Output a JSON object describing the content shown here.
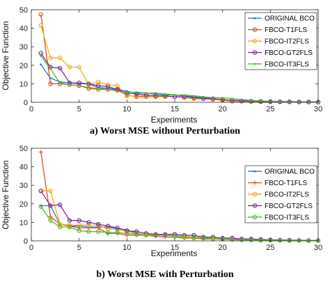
{
  "chart_data": [
    {
      "type": "line",
      "caption": "a) Worst MSE without Perturbation",
      "xlabel": "Experiments",
      "ylabel": "Objective Function",
      "xlim": [
        0,
        30
      ],
      "ylim": [
        0,
        50
      ],
      "xticks": [
        0,
        5,
        10,
        15,
        20,
        25,
        30
      ],
      "yticks": [
        0,
        10,
        20,
        30,
        40,
        50
      ],
      "grid": false,
      "legend_position": "top-right",
      "x": [
        1,
        2,
        3,
        4,
        5,
        6,
        7,
        8,
        9,
        10,
        11,
        12,
        13,
        14,
        15,
        16,
        17,
        18,
        19,
        20,
        21,
        22,
        23,
        24,
        25,
        26,
        27,
        28,
        29,
        30
      ],
      "series": [
        {
          "name": "ORIGINAL BCO",
          "color": "#1f77d4",
          "marker": "point",
          "values": [
            20.5,
            13,
            11,
            10.5,
            10,
            10,
            8,
            7.5,
            7,
            6,
            5,
            5,
            4.5,
            4,
            4,
            3.5,
            3,
            2.5,
            2,
            1.5,
            1,
            1,
            0.8,
            0.7,
            0.6,
            0.5,
            0.4,
            0.3,
            0.3,
            0.2
          ]
        },
        {
          "name": "FBCO-T1FLS",
          "color": "#d9541e",
          "marker": "circle",
          "values": [
            47.5,
            10,
            10,
            9.5,
            9,
            7.5,
            7,
            7,
            6.5,
            4,
            3,
            3,
            3,
            3,
            3,
            2.5,
            2,
            2,
            1.5,
            1,
            0.5,
            0.5,
            0.4,
            0.3,
            0.3,
            0.3,
            0.2,
            0.2,
            0.1,
            0.1
          ]
        },
        {
          "name": "FBCO-IT2FLS",
          "color": "#eeb120",
          "marker": "circle",
          "values": [
            41.5,
            24,
            24,
            19,
            19,
            9.5,
            11,
            9.5,
            9,
            3.5,
            3.5,
            3.5,
            3,
            3,
            3,
            2.5,
            2,
            2,
            1.5,
            1,
            0.5,
            0.5,
            0.4,
            0.3,
            0.3,
            0.3,
            0.2,
            0.2,
            0.1,
            0.1
          ]
        },
        {
          "name": "FBCO-GT2FLS",
          "color": "#7e2f8e",
          "marker": "circle",
          "values": [
            26.5,
            19,
            18.5,
            10.5,
            10.5,
            10,
            9,
            8.5,
            7,
            5,
            4.5,
            4,
            3.5,
            3.5,
            3,
            3,
            2.5,
            2,
            2,
            1.5,
            1,
            0.8,
            0.6,
            0.5,
            0.4,
            0.3,
            0.3,
            0.2,
            0.2,
            0.1
          ]
        },
        {
          "name": "FBCO-IT3FLS",
          "color": "#56b93a",
          "marker": "point",
          "values": [
            25,
            18,
            10.5,
            9.5,
            9,
            8,
            7.5,
            7,
            6,
            5.5,
            5.5,
            5,
            5,
            4.5,
            4,
            4,
            3.5,
            3,
            2.5,
            2.5,
            2,
            1.5,
            1,
            0.8,
            0.6,
            0.5,
            0.4,
            0.3,
            0.3,
            0.3
          ]
        }
      ]
    },
    {
      "type": "line",
      "caption": "b) Worst MSE with Perturbation",
      "xlabel": "Experiments",
      "ylabel": "Objective Function",
      "xlim": [
        0,
        30
      ],
      "ylim": [
        0,
        50
      ],
      "xticks": [
        0,
        5,
        10,
        15,
        20,
        25,
        30
      ],
      "yticks": [
        0,
        10,
        20,
        30,
        40,
        50
      ],
      "grid": false,
      "legend_position": "top-right",
      "x": [
        1,
        2,
        3,
        4,
        5,
        6,
        7,
        8,
        9,
        10,
        11,
        12,
        13,
        14,
        15,
        16,
        17,
        18,
        19,
        20,
        21,
        22,
        23,
        24,
        25,
        26,
        27,
        28,
        29,
        30
      ],
      "series": [
        {
          "name": "ORIGINAL BCO",
          "color": "#1f77d4",
          "marker": "point",
          "values": [
            19,
            19,
            9,
            8,
            8,
            7.5,
            7.5,
            7.5,
            6.5,
            6,
            4,
            3.5,
            3.5,
            3,
            3,
            2.5,
            2,
            1.5,
            1.5,
            1,
            1,
            0.8,
            0.7,
            0.6,
            0.5,
            0.4,
            0.3,
            0.3,
            0.2,
            0.2
          ]
        },
        {
          "name": "FBCO-T1FLS",
          "color": "#d9541e",
          "marker": "plus",
          "values": [
            48,
            13,
            9,
            8,
            7,
            7,
            7,
            4,
            4,
            3,
            3,
            3,
            2.5,
            2,
            2,
            1.5,
            1.5,
            1,
            1,
            0.8,
            0.6,
            0.5,
            0.4,
            0.3,
            0.3,
            0.2,
            0.2,
            0.2,
            0.1,
            0.1
          ]
        },
        {
          "name": "FBCO-IT2FLS",
          "color": "#eeb120",
          "marker": "circle",
          "values": [
            27,
            27,
            9,
            8.5,
            8.5,
            8.5,
            8.5,
            6.5,
            6,
            5,
            4,
            3.5,
            3,
            3,
            3,
            2.5,
            2,
            2,
            1.5,
            1,
            1,
            0.8,
            0.6,
            0.5,
            0.4,
            0.3,
            0.3,
            0.2,
            0.2,
            0.1
          ]
        },
        {
          "name": "FBCO-GT2FLS",
          "color": "#7e2f8e",
          "marker": "circle",
          "values": [
            27,
            19,
            19.5,
            11,
            11,
            10,
            9,
            8,
            7,
            5.5,
            5,
            4,
            3.5,
            3.5,
            3.5,
            3,
            3,
            2,
            2,
            1.5,
            1.5,
            1,
            1,
            0.8,
            0.6,
            0.5,
            0.4,
            0.3,
            0.2,
            0.2
          ]
        },
        {
          "name": "FBCO-IT3FLS",
          "color": "#56b93a",
          "marker": "circle",
          "values": [
            18.5,
            11,
            7.5,
            7.5,
            5.5,
            5,
            5,
            4.5,
            4.5,
            4,
            3.5,
            3,
            3,
            3,
            2.5,
            2,
            1.5,
            1.5,
            1,
            1,
            0.8,
            0.6,
            0.5,
            0.4,
            0.3,
            0.3,
            0.2,
            0.2,
            0.1,
            0.1
          ]
        }
      ]
    }
  ]
}
